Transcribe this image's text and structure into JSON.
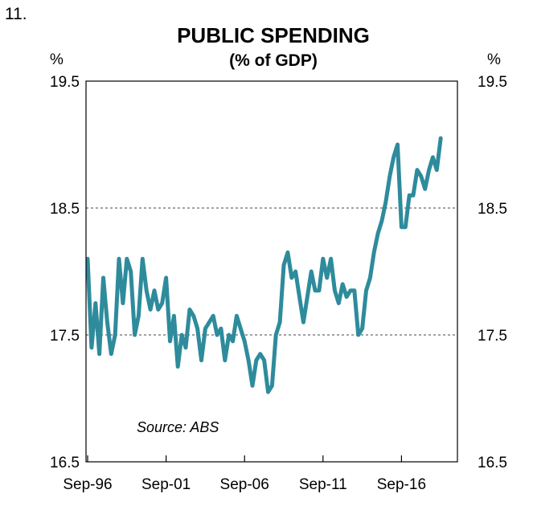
{
  "chart_number": "11.",
  "chart_data": {
    "type": "line",
    "title": "PUBLIC SPENDING",
    "subtitle": "(% of GDP)",
    "ylabel_left": "%",
    "ylabel_right": "%",
    "ylim": [
      16.5,
      19.5
    ],
    "yticks": [
      "19.5",
      "18.5",
      "17.5",
      "16.5"
    ],
    "ytick_values": [
      19.5,
      18.5,
      17.5,
      16.5
    ],
    "xtick_labels": [
      "Sep-96",
      "Sep-01",
      "Sep-06",
      "Sep-11",
      "Sep-16"
    ],
    "xtick_index": [
      0,
      20,
      40,
      60,
      80
    ],
    "gridlines": "dashed at 18.5, 17.5 and 19.5",
    "source": "Source: ABS",
    "line_color": "#2e8b9c",
    "series": [
      {
        "name": "Public spending (% of GDP)",
        "values": [
          18.1,
          17.4,
          17.75,
          17.35,
          17.95,
          17.6,
          17.35,
          17.5,
          18.1,
          17.75,
          18.1,
          18.0,
          17.5,
          17.65,
          18.1,
          17.85,
          17.7,
          17.85,
          17.7,
          17.75,
          17.95,
          17.45,
          17.65,
          17.25,
          17.5,
          17.4,
          17.7,
          17.65,
          17.55,
          17.3,
          17.55,
          17.6,
          17.65,
          17.5,
          17.55,
          17.3,
          17.5,
          17.45,
          17.65,
          17.55,
          17.45,
          17.3,
          17.1,
          17.3,
          17.35,
          17.3,
          17.05,
          17.1,
          17.5,
          17.6,
          18.05,
          18.15,
          17.95,
          18.0,
          17.8,
          17.6,
          17.8,
          18.0,
          17.85,
          17.85,
          18.1,
          17.95,
          18.1,
          17.85,
          17.75,
          17.9,
          17.8,
          17.85,
          17.85,
          17.5,
          17.55,
          17.85,
          17.95,
          18.15,
          18.3,
          18.4,
          18.55,
          18.75,
          18.9,
          19.0,
          18.35,
          18.35,
          18.6,
          18.6,
          18.8,
          18.75,
          18.65,
          18.8,
          18.9,
          18.8,
          19.05
        ]
      }
    ]
  }
}
